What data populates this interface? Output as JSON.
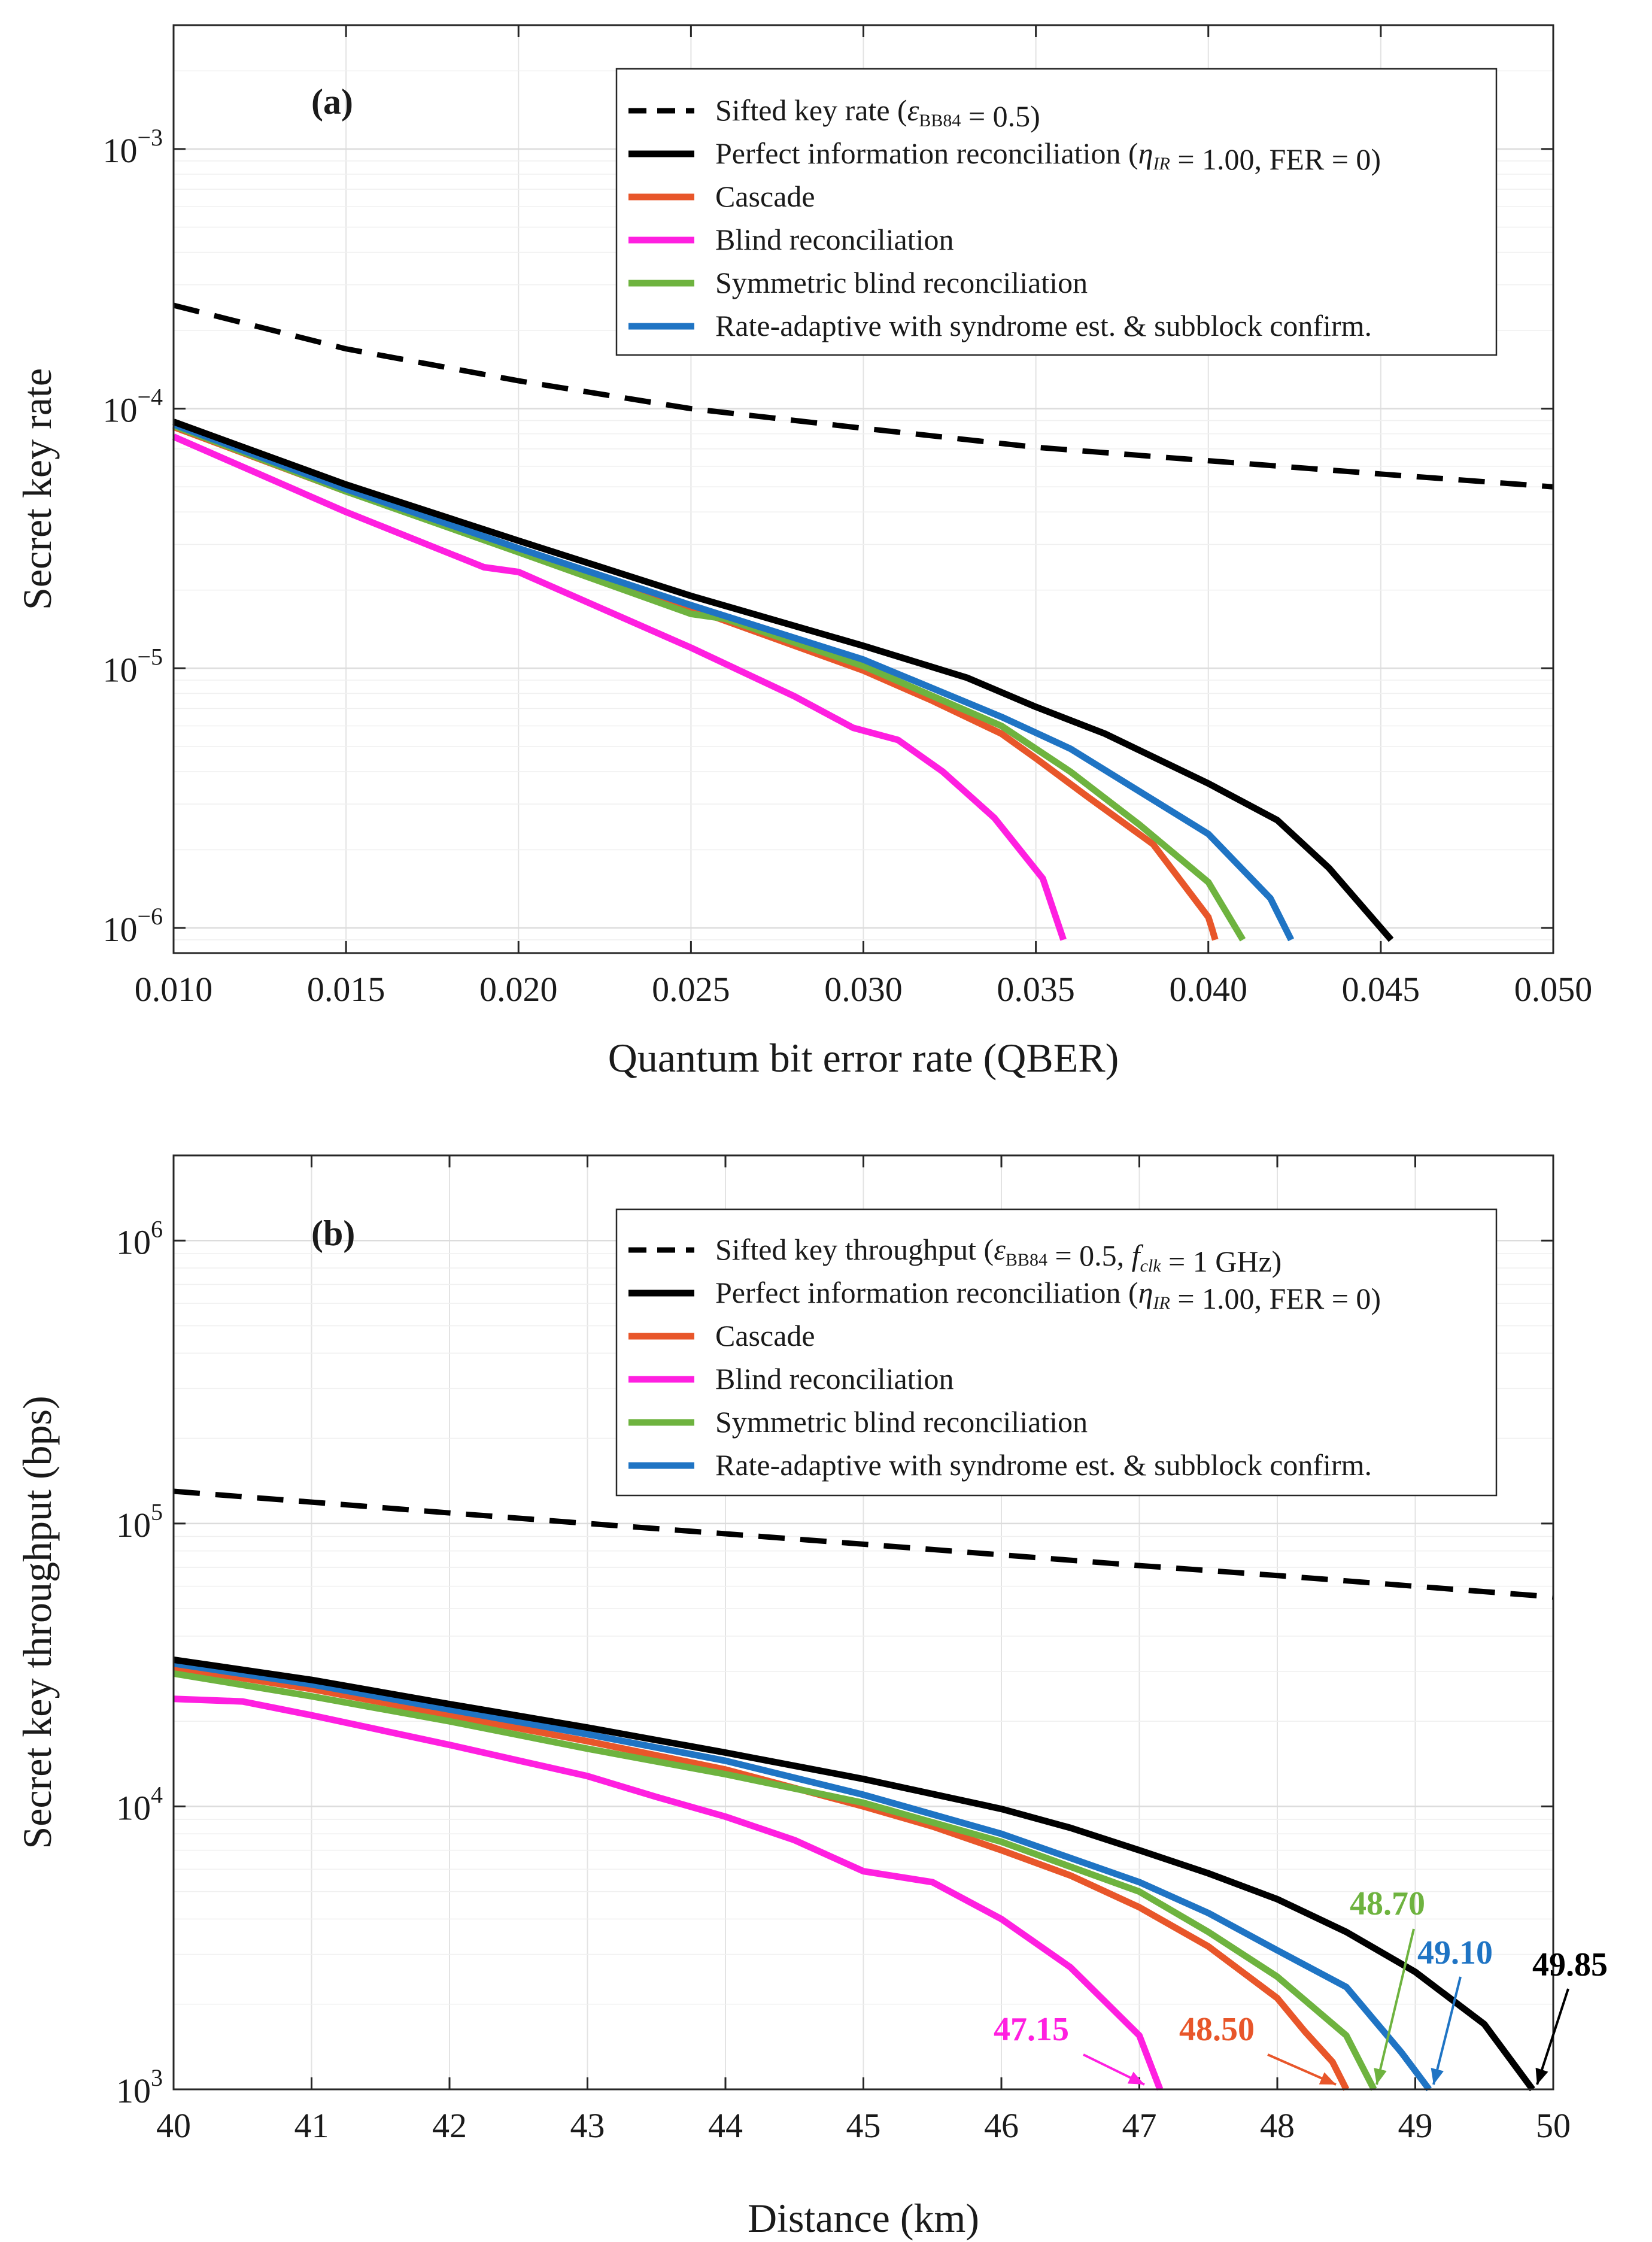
{
  "chart_data": [
    {
      "type": "line",
      "panel_label": "(a)",
      "xlabel": "Quantum bit error rate (QBER)",
      "ylabel": "Secret key rate",
      "yscale": "log",
      "xlim": [
        0.01,
        0.05
      ],
      "ylim": [
        8e-07,
        0.003
      ],
      "x_ticks": [
        {
          "value": 0.01,
          "label": "0.010"
        },
        {
          "value": 0.015,
          "label": "0.015"
        },
        {
          "value": 0.02,
          "label": "0.020"
        },
        {
          "value": 0.025,
          "label": "0.025"
        },
        {
          "value": 0.03,
          "label": "0.030"
        },
        {
          "value": 0.035,
          "label": "0.035"
        },
        {
          "value": 0.04,
          "label": "0.040"
        },
        {
          "value": 0.045,
          "label": "0.045"
        },
        {
          "value": 0.05,
          "label": "0.050"
        }
      ],
      "y_ticks": [
        {
          "value": 1e-06,
          "base": "10",
          "exp": "−6"
        },
        {
          "value": 1e-05,
          "base": "10",
          "exp": "−5"
        },
        {
          "value": 0.0001,
          "base": "10",
          "exp": "−4"
        },
        {
          "value": 0.001,
          "base": "10",
          "exp": "−3"
        }
      ],
      "legend_position": "top-right",
      "series": [
        {
          "key": "sifted",
          "color": "#000000",
          "style": "dashed",
          "legend": [
            {
              "t": "Sifted key rate ("
            },
            {
              "t": "ε",
              "i": true
            },
            {
              "t": "BB84",
              "sub": true
            },
            {
              "t": " = 0.5)"
            }
          ],
          "x": [
            0.01,
            0.015,
            0.02,
            0.025,
            0.03,
            0.035,
            0.04,
            0.045,
            0.05
          ],
          "y": [
            0.00025,
            0.00017,
            0.000128,
            0.0001,
            8.4e-05,
            7.1e-05,
            6.3e-05,
            5.6e-05,
            5e-05
          ]
        },
        {
          "key": "perfect",
          "color": "#000000",
          "style": "solid",
          "legend": [
            {
              "t": "Perfect information reconciliation ("
            },
            {
              "t": "η",
              "i": true
            },
            {
              "t": "IR",
              "sub": true,
              "i": true
            },
            {
              "t": " = 1.00, FER = 0)"
            }
          ],
          "x": [
            0.01,
            0.015,
            0.02,
            0.025,
            0.03,
            0.033,
            0.035,
            0.037,
            0.04,
            0.042,
            0.0435,
            0.0453
          ],
          "y": [
            8.9e-05,
            5.1e-05,
            3.1e-05,
            1.9e-05,
            1.22e-05,
            9.2e-06,
            7.1e-06,
            5.6e-06,
            3.6e-06,
            2.6e-06,
            1.7e-06,
            9e-07
          ]
        },
        {
          "key": "cascade",
          "color": "#e8562a",
          "style": "solid",
          "legend": [
            {
              "t": "Cascade"
            }
          ],
          "x": [
            0.01,
            0.015,
            0.02,
            0.025,
            0.03,
            0.032,
            0.034,
            0.035,
            0.0365,
            0.0384,
            0.04,
            0.0401,
            0.0402
          ],
          "y": [
            8.5e-05,
            4.8e-05,
            2.85e-05,
            1.7e-05,
            9.8e-06,
            7.5e-06,
            5.6e-06,
            4.5e-06,
            3.2e-06,
            2.1e-06,
            1.1e-06,
            1e-06,
            9e-07
          ]
        },
        {
          "key": "blind",
          "color": "#ff1fe0",
          "style": "solid",
          "legend": [
            {
              "t": "Blind reconciliation"
            }
          ],
          "x": [
            0.01,
            0.015,
            0.019,
            0.02,
            0.025,
            0.028,
            0.0297,
            0.031,
            0.0323,
            0.0338,
            0.0352,
            0.0358
          ],
          "y": [
            7.8e-05,
            4e-05,
            2.45e-05,
            2.35e-05,
            1.2e-05,
            7.8e-06,
            5.9e-06,
            5.3e-06,
            4e-06,
            2.65e-06,
            1.55e-06,
            9e-07
          ]
        },
        {
          "key": "symblind",
          "color": "#6eb33f",
          "style": "solid",
          "legend": [
            {
              "t": "Symmetric blind reconciliation"
            }
          ],
          "x": [
            0.01,
            0.015,
            0.02,
            0.025,
            0.026,
            0.03,
            0.034,
            0.036,
            0.038,
            0.04,
            0.041
          ],
          "y": [
            8.6e-05,
            4.8e-05,
            2.8e-05,
            1.62e-05,
            1.55e-05,
            1.02e-05,
            6e-06,
            4e-06,
            2.5e-06,
            1.5e-06,
            9e-07
          ]
        },
        {
          "key": "rateadapt",
          "color": "#1f74c4",
          "style": "solid",
          "legend": [
            {
              "t": "Rate-adaptive with syndrome est. & subblock confirm."
            }
          ],
          "x": [
            0.01,
            0.015,
            0.02,
            0.025,
            0.03,
            0.034,
            0.036,
            0.04,
            0.0418,
            0.0424
          ],
          "y": [
            8.7e-05,
            4.9e-05,
            2.9e-05,
            1.75e-05,
            1.08e-05,
            6.5e-06,
            4.9e-06,
            2.3e-06,
            1.3e-06,
            9e-07
          ]
        }
      ]
    },
    {
      "type": "line",
      "panel_label": "(b)",
      "xlabel": "Distance (km)",
      "ylabel": "Secret key throughput (bps)",
      "yscale": "log",
      "xlim": [
        40,
        50
      ],
      "ylim": [
        1000,
        2000000
      ],
      "x_ticks": [
        {
          "value": 40,
          "label": "40"
        },
        {
          "value": 41,
          "label": "41"
        },
        {
          "value": 42,
          "label": "42"
        },
        {
          "value": 43,
          "label": "43"
        },
        {
          "value": 44,
          "label": "44"
        },
        {
          "value": 45,
          "label": "45"
        },
        {
          "value": 46,
          "label": "46"
        },
        {
          "value": 47,
          "label": "47"
        },
        {
          "value": 48,
          "label": "48"
        },
        {
          "value": 49,
          "label": "49"
        },
        {
          "value": 50,
          "label": "50"
        }
      ],
      "y_ticks": [
        {
          "value": 1000,
          "base": "10",
          "exp": "3"
        },
        {
          "value": 10000,
          "base": "10",
          "exp": "4"
        },
        {
          "value": 100000,
          "base": "10",
          "exp": "5"
        },
        {
          "value": 1000000,
          "base": "10",
          "exp": "6"
        }
      ],
      "legend_position": "top-right",
      "series": [
        {
          "key": "sifted",
          "color": "#000000",
          "style": "dashed",
          "legend": [
            {
              "t": "Sifted key throughput  ("
            },
            {
              "t": "ε",
              "i": true
            },
            {
              "t": "BB84",
              "sub": true
            },
            {
              "t": " = 0.5, "
            },
            {
              "t": "f",
              "i": true
            },
            {
              "t": "clk",
              "sub": true,
              "i": true
            },
            {
              "t": " = 1 GHz)"
            }
          ],
          "x": [
            40,
            41,
            42,
            43,
            44,
            45,
            46,
            47,
            48,
            49,
            50
          ],
          "y": [
            130000,
            119000,
            109000,
            100000,
            92000,
            84500,
            77500,
            71000,
            65500,
            60000,
            55000
          ]
        },
        {
          "key": "perfect",
          "color": "#000000",
          "style": "solid",
          "legend": [
            {
              "t": "Perfect information reconciliation ("
            },
            {
              "t": "η",
              "i": true
            },
            {
              "t": "IR",
              "sub": true,
              "i": true
            },
            {
              "t": " = 1.00, FER = 0)"
            }
          ],
          "x": [
            40,
            41,
            42,
            43,
            44,
            45,
            46,
            46.5,
            47,
            47.5,
            48,
            48.5,
            49,
            49.5,
            49.85
          ],
          "y": [
            33000,
            28000,
            23000,
            19000,
            15500,
            12500,
            9800,
            8400,
            7000,
            5800,
            4700,
            3600,
            2600,
            1700,
            1000
          ]
        },
        {
          "key": "cascade",
          "color": "#e8562a",
          "style": "solid",
          "legend": [
            {
              "t": "Cascade"
            }
          ],
          "x": [
            40,
            41,
            42,
            43,
            44,
            45,
            45.5,
            46,
            46.5,
            47,
            47.5,
            48,
            48.2,
            48.4,
            48.5
          ],
          "y": [
            31000,
            26000,
            21000,
            17000,
            13500,
            10000,
            8500,
            7000,
            5700,
            4400,
            3200,
            2100,
            1600,
            1250,
            1000
          ]
        },
        {
          "key": "blind",
          "color": "#ff1fe0",
          "style": "solid",
          "legend": [
            {
              "t": "Blind reconciliation"
            }
          ],
          "x": [
            40,
            40.5,
            41,
            42,
            43,
            43.5,
            44,
            44.5,
            45,
            45.5,
            46,
            46.5,
            47,
            47.15
          ],
          "y": [
            24000,
            23500,
            21000,
            16500,
            12800,
            10800,
            9200,
            7600,
            5900,
            5400,
            4000,
            2700,
            1550,
            1000
          ]
        },
        {
          "key": "symblind",
          "color": "#6eb33f",
          "style": "solid",
          "legend": [
            {
              "t": "Symmetric blind reconciliation"
            }
          ],
          "x": [
            40,
            41,
            42,
            43,
            44,
            45,
            46,
            47,
            47.5,
            48,
            48.5,
            48.7
          ],
          "y": [
            29500,
            24500,
            20000,
            16000,
            13000,
            10300,
            7500,
            5000,
            3600,
            2500,
            1550,
            1000
          ]
        },
        {
          "key": "rateadapt",
          "color": "#1f74c4",
          "style": "solid",
          "legend": [
            {
              "t": "Rate-adaptive with syndrome est. & subblock confirm."
            }
          ],
          "x": [
            40,
            41,
            42,
            43,
            44,
            45,
            46,
            47,
            47.5,
            48,
            48.5,
            48.9,
            49.1
          ],
          "y": [
            32000,
            27000,
            22000,
            18000,
            14500,
            11000,
            8000,
            5400,
            4200,
            3100,
            2300,
            1350,
            1000
          ]
        }
      ],
      "annotations": [
        {
          "text": "47.15",
          "color": "#ff1fe0",
          "x": 47.15
        },
        {
          "text": "48.50",
          "color": "#e8562a",
          "x": 48.5
        },
        {
          "text": "48.70",
          "color": "#6eb33f",
          "x": 48.7
        },
        {
          "text": "49.10",
          "color": "#1f74c4",
          "x": 49.1
        },
        {
          "text": "49.85",
          "color": "#000000",
          "x": 49.85
        }
      ]
    }
  ]
}
